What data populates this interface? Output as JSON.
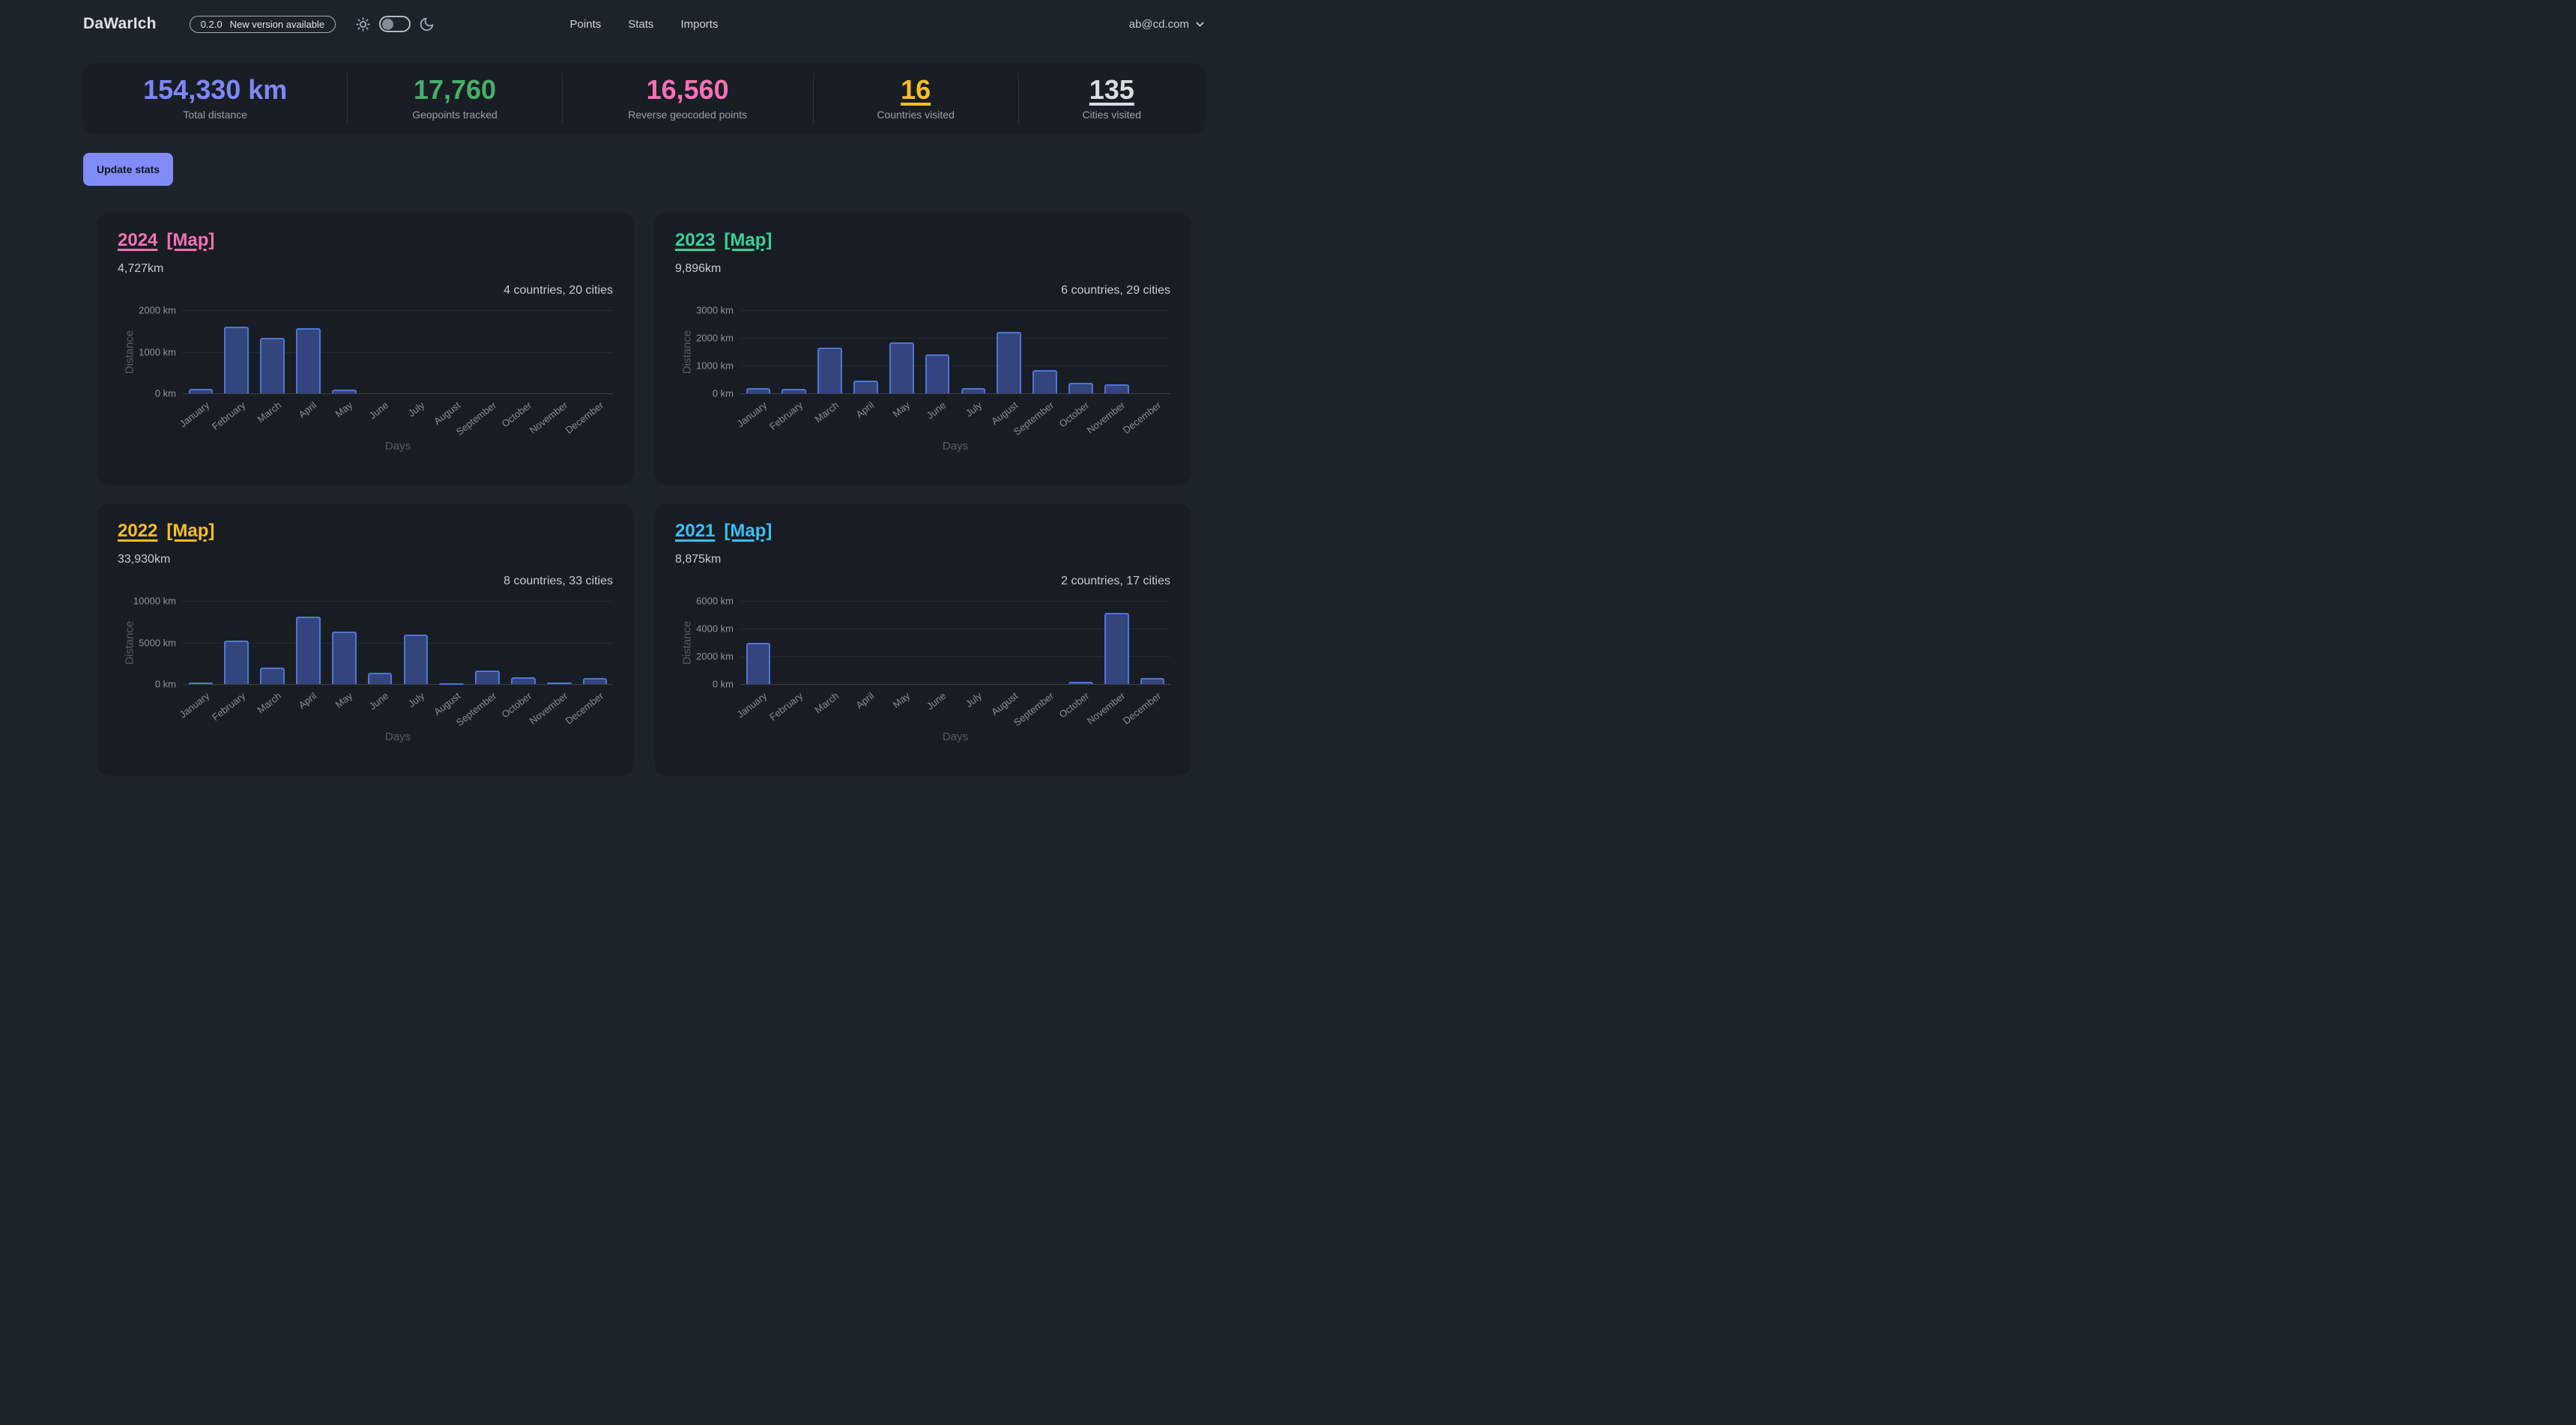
{
  "header": {
    "logo": "DaWarIch",
    "version": "0.2.0",
    "version_notice": "New version available",
    "nav": [
      {
        "label": "Points"
      },
      {
        "label": "Stats"
      },
      {
        "label": "Imports"
      }
    ],
    "user_email": "ab@cd.com"
  },
  "stats": [
    {
      "value": "154,330 km",
      "label": "Total distance",
      "color": "#7d88f8",
      "underlined": false
    },
    {
      "value": "17,760",
      "label": "Geopoints tracked",
      "color": "#47b06c",
      "underlined": false
    },
    {
      "value": "16,560",
      "label": "Reverse geocoded points",
      "color": "#f471b5",
      "underlined": false
    },
    {
      "value": "16",
      "label": "Countries visited",
      "color": "#fbbd23",
      "underlined": true
    },
    {
      "value": "135",
      "label": "Cities visited",
      "color": "#d9dce1",
      "underlined": true
    }
  ],
  "update_button_label": "Update stats",
  "colors": {
    "page_bg": "#1d232a",
    "panel_bg": "#191e24",
    "card_bg": "#181d23",
    "bar_fill": "#33457c",
    "bar_border": "#5174d8",
    "button_bg": "#818cf8"
  },
  "chart_data": [
    {
      "type": "bar",
      "year": "2024",
      "map_label": "[Map]",
      "accent": "#f471b5",
      "distance": "4,727km",
      "summary": "4 countries, 20 cities",
      "xlabel": "Days",
      "ylabel": "Distance",
      "ymax": 2000,
      "yticks": [
        {
          "value": 0,
          "label": "0 km"
        },
        {
          "value": 1000,
          "label": "1000 km"
        },
        {
          "value": 2000,
          "label": "2000 km"
        }
      ],
      "categories": [
        "January",
        "February",
        "March",
        "April",
        "May",
        "June",
        "July",
        "August",
        "September",
        "October",
        "November",
        "December"
      ],
      "values": [
        100,
        1610,
        1340,
        1565,
        95,
        0,
        0,
        0,
        0,
        0,
        0,
        0
      ]
    },
    {
      "type": "bar",
      "year": "2023",
      "map_label": "[Map]",
      "accent": "#36d399",
      "distance": "9,896km",
      "summary": "6 countries, 29 cities",
      "xlabel": "Days",
      "ylabel": "Distance",
      "ymax": 3000,
      "yticks": [
        {
          "value": 0,
          "label": "0 km"
        },
        {
          "value": 1000,
          "label": "1000 km"
        },
        {
          "value": 2000,
          "label": "2000 km"
        },
        {
          "value": 3000,
          "label": "3000 km"
        }
      ],
      "categories": [
        "January",
        "February",
        "March",
        "April",
        "May",
        "June",
        "July",
        "August",
        "September",
        "October",
        "November",
        "December"
      ],
      "values": [
        200,
        155,
        1640,
        465,
        1830,
        1405,
        180,
        2220,
        835,
        380,
        320,
        0
      ]
    },
    {
      "type": "bar",
      "year": "2022",
      "map_label": "[Map]",
      "accent": "#fbbd23",
      "distance": "33,930km",
      "summary": "8 countries, 33 cities",
      "xlabel": "Days",
      "ylabel": "Distance",
      "ymax": 10000,
      "yticks": [
        {
          "value": 0,
          "label": "0 km"
        },
        {
          "value": 5000,
          "label": "5000 km"
        },
        {
          "value": 10000,
          "label": "10000 km"
        }
      ],
      "categories": [
        "January",
        "February",
        "March",
        "April",
        "May",
        "June",
        "July",
        "August",
        "September",
        "October",
        "November",
        "December"
      ],
      "values": [
        150,
        5190,
        2025,
        8070,
        6350,
        1370,
        5940,
        120,
        1630,
        805,
        165,
        760
      ]
    },
    {
      "type": "bar",
      "year": "2021",
      "map_label": "[Map]",
      "accent": "#3abff8",
      "distance": "8,875km",
      "summary": "2 countries, 17 cities",
      "xlabel": "Days",
      "ylabel": "Distance",
      "ymax": 6000,
      "yticks": [
        {
          "value": 0,
          "label": "0 km"
        },
        {
          "value": 2000,
          "label": "2000 km"
        },
        {
          "value": 4000,
          "label": "4000 km"
        },
        {
          "value": 6000,
          "label": "6000 km"
        }
      ],
      "categories": [
        "January",
        "February",
        "March",
        "April",
        "May",
        "June",
        "July",
        "August",
        "September",
        "October",
        "November",
        "December"
      ],
      "values": [
        2980,
        0,
        0,
        0,
        0,
        0,
        0,
        0,
        0,
        180,
        5155,
        450
      ]
    }
  ]
}
